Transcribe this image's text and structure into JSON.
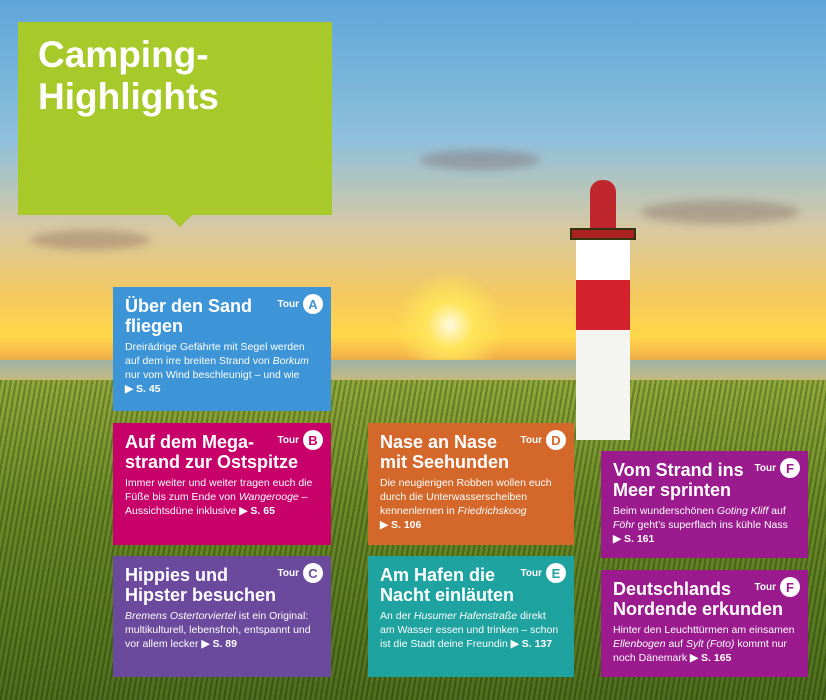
{
  "title": "Camping-Highlights",
  "colors": {
    "title_box": "#a8c92a",
    "A": "#3d95d8",
    "B": "#c8006a",
    "C": "#6b4a9e",
    "D": "#d4672a",
    "E": "#1ea3a0",
    "F": "#9b1a8e"
  },
  "tour_label": "Tour",
  "cards": [
    {
      "letter": "A",
      "title": "Über den Sand fliegen",
      "parts": [
        "Dreirädrige Gefährte mit Segel werden auf dem irre breiten Strand von ",
        "Borkum",
        " nur vom Wind beschleunigt – und wie "
      ],
      "ref": "▶ S. 45"
    },
    {
      "letter": "B",
      "title": "Auf dem Mega­strand zur Ostspitze",
      "parts": [
        "Immer weiter und weiter tragen euch die Füße bis zum Ende von ",
        "Wanger­ooge",
        " – Aussichtsdüne inklusive "
      ],
      "ref": "▶ S. 65"
    },
    {
      "letter": "C",
      "title": "Hippies und Hipster besuchen",
      "parts": [
        "",
        "Bremens Ostertorviertel",
        " ist ein Original: multikulturell, lebensfroh, entspannt und vor allem lecker "
      ],
      "ref": "▶ S. 89"
    },
    {
      "letter": "D",
      "title": "Nase an Nase mit Seehunden",
      "parts": [
        "Die neugierigen Robben wollen euch durch die Unterwasser­scheiben kennenlernen in ",
        "Friedrichskoog",
        " "
      ],
      "ref": "▶ S. 106"
    },
    {
      "letter": "E",
      "title": "Am Hafen die Nacht einläuten",
      "parts": [
        "An der ",
        "Husumer Hafenstraße",
        " direkt am Wasser essen und trinken – schon ist die Stadt deine Freundin "
      ],
      "ref": "▶ S. 137"
    },
    {
      "letter": "F",
      "title": "Vom Strand ins Meer sprinten",
      "parts": [
        "Beim wunderschönen ",
        "Goting Kliff",
        " auf ",
        "Föhr",
        " geht’s superflach ins kühle Nass "
      ],
      "ref": "▶ S. 161"
    },
    {
      "letter": "F",
      "title": "Deutschlands Nordende erkunden",
      "parts": [
        "Hinter den Leuchttürmen am einsamen ",
        "Ellenbogen",
        " auf ",
        "Sylt (Foto)",
        " kommt nur noch Dänemark "
      ],
      "ref": "▶ S. 165"
    }
  ]
}
